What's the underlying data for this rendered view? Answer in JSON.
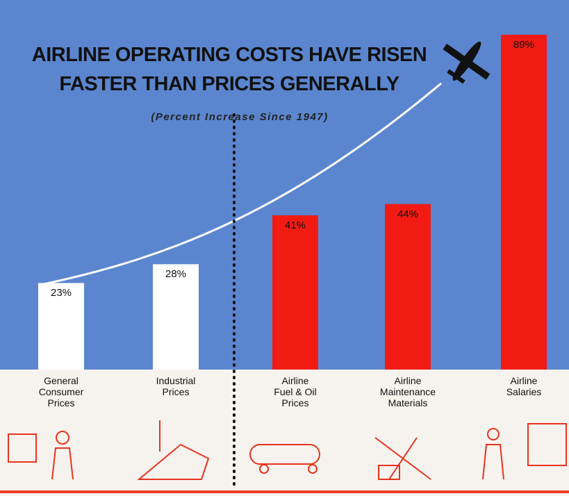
{
  "chart_data": {
    "type": "bar",
    "title": "AIRLINE OPERATING COSTS HAVE RISEN\nFASTER THAN PRICES GENERALLY",
    "subtitle": "(Percent Increase Since 1947)",
    "categories": [
      "General\nConsumer\nPrices",
      "Industrial\nPrices",
      "Airline\nFuel & Oil\nPrices",
      "Airline\nMaintenance\nMaterials",
      "Airline\nSalaries"
    ],
    "values": [
      23,
      28,
      41,
      44,
      89
    ],
    "value_labels": [
      "23%",
      "28%",
      "41%",
      "44%",
      "89%"
    ],
    "colors": [
      "#ffffff",
      "#ffffff",
      "#f21b14",
      "#f21b14",
      "#f21b14"
    ]
  }
}
